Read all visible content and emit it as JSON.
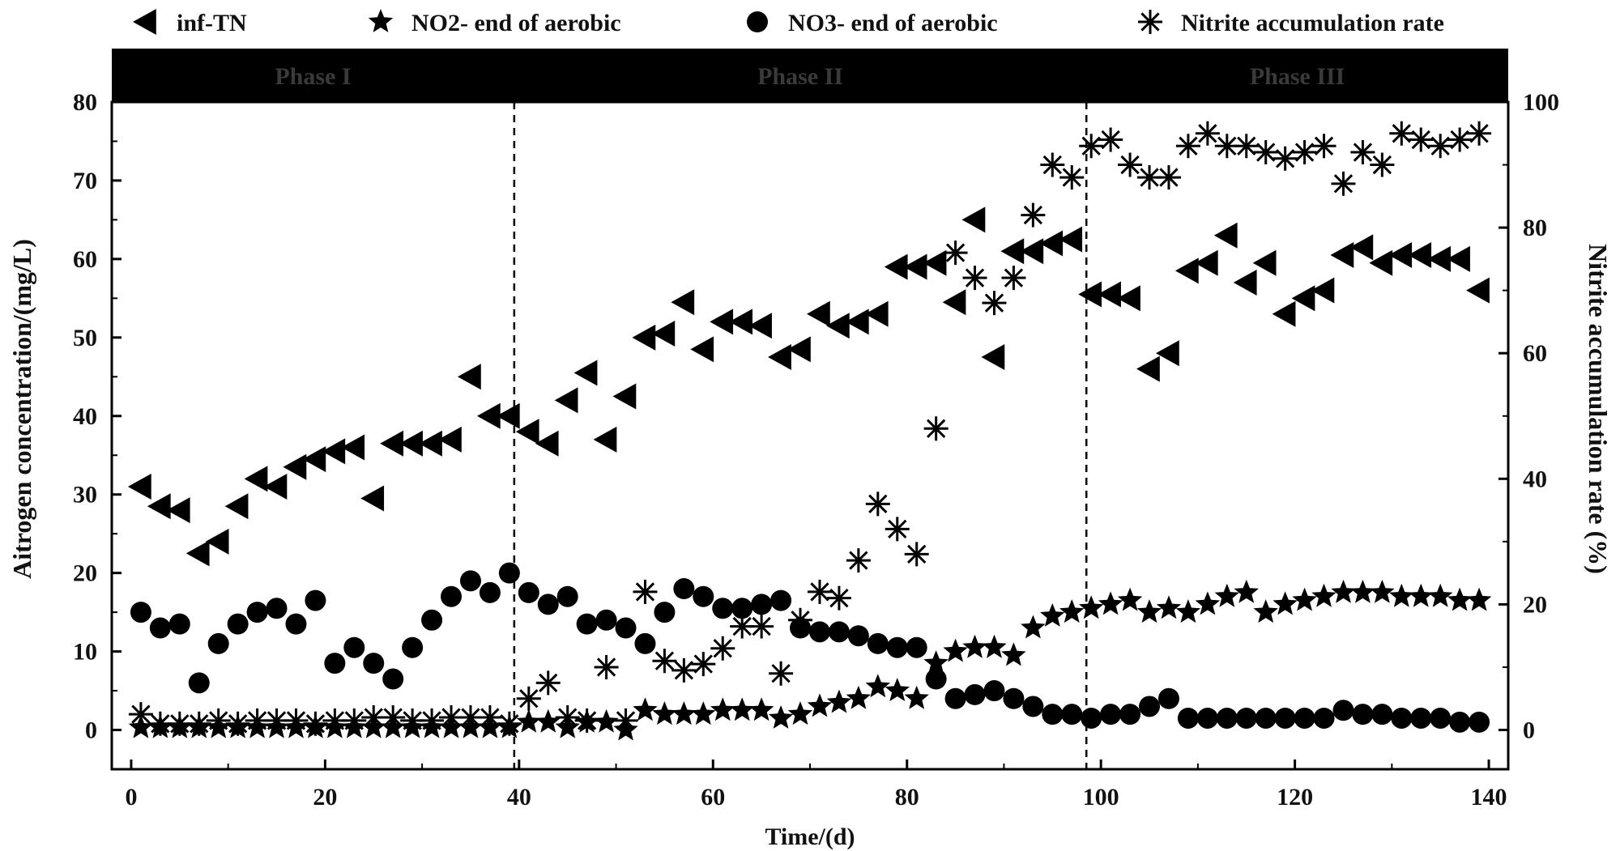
{
  "chart_data": {
    "type": "scatter",
    "xlabel": "Time/(d)",
    "ylabel_left": "Aitrogen concentration/(mg/L)",
    "ylabel_right": "Nitrite accumulation rate (%)",
    "xlim": [
      -2,
      142
    ],
    "ylim_left": [
      -5,
      80
    ],
    "ylim_right": [
      -6.25,
      100
    ],
    "x_ticks": [
      0,
      20,
      40,
      60,
      80,
      100,
      120,
      140
    ],
    "y_left_ticks": [
      0,
      10,
      20,
      30,
      40,
      50,
      60,
      70,
      80
    ],
    "y_right_ticks": [
      0,
      20,
      40,
      60,
      80,
      100
    ],
    "grid": false,
    "legend_position": "top",
    "phase_band": {
      "color": "#000000",
      "phases": [
        {
          "label": "Phase I",
          "x_start": -2,
          "x_end": 39.5
        },
        {
          "label": "Phase II",
          "x_start": 39.5,
          "x_end": 98.5
        },
        {
          "label": "Phase III",
          "x_start": 98.5,
          "x_end": 142
        }
      ],
      "dividers": [
        39.5,
        98.5
      ]
    },
    "series": [
      {
        "name": "inf-TN",
        "marker": "left-triangle",
        "axis": "left",
        "x": [
          1,
          3,
          5,
          7,
          9,
          11,
          13,
          15,
          17,
          19,
          21,
          23,
          25,
          27,
          29,
          31,
          33,
          35,
          37,
          39,
          41,
          43,
          45,
          47,
          49,
          51,
          53,
          55,
          57,
          59,
          61,
          63,
          65,
          67,
          69,
          71,
          73,
          75,
          77,
          79,
          81,
          83,
          85,
          87,
          89,
          91,
          93,
          95,
          97,
          99,
          101,
          103,
          105,
          107,
          109,
          111,
          113,
          115,
          117,
          119,
          121,
          123,
          125,
          127,
          129,
          131,
          133,
          135,
          137,
          139
        ],
        "y": [
          31,
          28.5,
          28,
          22.5,
          24,
          28.5,
          32,
          31,
          33.5,
          34.5,
          35.5,
          36,
          29.5,
          36.5,
          36.5,
          36.5,
          37,
          45,
          40,
          40,
          38,
          36.5,
          42,
          45.5,
          37,
          42.5,
          50,
          50.5,
          54.5,
          48.5,
          52,
          52,
          51.5,
          47.5,
          48.5,
          53,
          51.5,
          52,
          53,
          59,
          59,
          59.5,
          54.5,
          65,
          47.5,
          61,
          61,
          62,
          62.5,
          55.5,
          55.5,
          55,
          46,
          48,
          58.5,
          59.5,
          63,
          57,
          59.5,
          53,
          55,
          56,
          60.5,
          61.5,
          59.5,
          60.5,
          60.5,
          60,
          60,
          56
        ]
      },
      {
        "name": "NO2- end of aerobic",
        "marker": "star",
        "axis": "left",
        "x": [
          1,
          3,
          5,
          7,
          9,
          11,
          13,
          15,
          17,
          19,
          21,
          23,
          25,
          27,
          29,
          31,
          33,
          35,
          37,
          39,
          41,
          43,
          45,
          47,
          49,
          51,
          53,
          55,
          57,
          59,
          61,
          63,
          65,
          67,
          69,
          71,
          73,
          75,
          77,
          79,
          81,
          83,
          85,
          87,
          89,
          91,
          93,
          95,
          97,
          99,
          101,
          103,
          105,
          107,
          109,
          111,
          113,
          115,
          117,
          119,
          121,
          123,
          125,
          127,
          129,
          131,
          133,
          135,
          137,
          139
        ],
        "y": [
          0.3,
          0.3,
          0.3,
          0.3,
          0.3,
          0.3,
          0.3,
          0.3,
          0.3,
          0.3,
          0.3,
          0.3,
          0.3,
          0.3,
          0.3,
          0.3,
          0.3,
          0.3,
          0.3,
          0.3,
          1,
          1,
          0.3,
          1,
          1,
          0,
          2.5,
          2,
          2,
          2,
          2.5,
          2.5,
          2.5,
          1.5,
          2,
          3,
          3.5,
          4,
          5.5,
          5,
          4,
          8.5,
          10,
          10.5,
          10.5,
          9.5,
          13,
          14.5,
          15,
          15.5,
          16,
          16.5,
          15,
          15.5,
          15,
          16,
          17,
          17.5,
          15,
          16,
          16.5,
          17,
          17.5,
          17.5,
          17.5,
          17,
          17,
          17,
          16.5,
          16.5
        ]
      },
      {
        "name": "NO3- end of aerobic",
        "marker": "circle",
        "axis": "left",
        "x": [
          1,
          3,
          5,
          7,
          9,
          11,
          13,
          15,
          17,
          19,
          21,
          23,
          25,
          27,
          29,
          31,
          33,
          35,
          37,
          39,
          41,
          43,
          45,
          47,
          49,
          51,
          53,
          55,
          57,
          59,
          61,
          63,
          65,
          67,
          69,
          71,
          73,
          75,
          77,
          79,
          81,
          83,
          85,
          87,
          89,
          91,
          93,
          95,
          97,
          99,
          101,
          103,
          105,
          107,
          109,
          111,
          113,
          115,
          117,
          119,
          121,
          123,
          125,
          127,
          129,
          131,
          133,
          135,
          137,
          139
        ],
        "y": [
          15,
          13,
          13.5,
          6,
          11,
          13.5,
          15,
          15.5,
          13.5,
          16.5,
          8.5,
          10.5,
          8.5,
          6.5,
          10.5,
          14,
          17,
          19,
          17.5,
          20,
          17.5,
          16,
          17,
          13.5,
          14,
          13,
          11,
          15,
          18,
          17,
          15.5,
          15.5,
          16,
          16.5,
          13,
          12.5,
          12.5,
          12,
          11,
          10.5,
          10.5,
          6.5,
          4,
          4.5,
          5,
          4,
          3,
          2,
          2,
          1.5,
          2,
          2,
          3,
          4,
          1.5,
          1.5,
          1.5,
          1.5,
          1.5,
          1.5,
          1.5,
          1.5,
          2.5,
          2,
          2,
          1.5,
          1.5,
          1.5,
          1,
          1
        ]
      },
      {
        "name": "Nitrite accumulation rate",
        "marker": "asterisk",
        "axis": "right",
        "x": [
          1,
          3,
          5,
          7,
          9,
          11,
          13,
          15,
          17,
          19,
          21,
          23,
          25,
          27,
          29,
          31,
          33,
          35,
          37,
          39,
          41,
          43,
          45,
          47,
          49,
          51,
          53,
          55,
          57,
          59,
          61,
          63,
          65,
          67,
          69,
          71,
          73,
          75,
          77,
          79,
          81,
          83,
          85,
          87,
          89,
          91,
          93,
          95,
          97,
          99,
          101,
          103,
          105,
          107,
          109,
          111,
          113,
          115,
          117,
          119,
          121,
          123,
          125,
          127,
          129,
          131,
          133,
          135,
          137,
          139
        ],
        "y": [
          2.5,
          1,
          1,
          1,
          1.5,
          1,
          1.5,
          1.5,
          1.5,
          1,
          1.5,
          1.5,
          2,
          2,
          1.5,
          1.5,
          2,
          2,
          2,
          1,
          5,
          7.5,
          2,
          1.5,
          10,
          1.5,
          22,
          11,
          9.5,
          10.5,
          13,
          16.5,
          16.5,
          9,
          17.5,
          22,
          21,
          27,
          36,
          32,
          28,
          48,
          76,
          72,
          68,
          72,
          82,
          90,
          88,
          93,
          94,
          90,
          88,
          88,
          93,
          95,
          93,
          93,
          92,
          91,
          92,
          93,
          87,
          92,
          90,
          95,
          94,
          93,
          94,
          95
        ]
      }
    ]
  }
}
